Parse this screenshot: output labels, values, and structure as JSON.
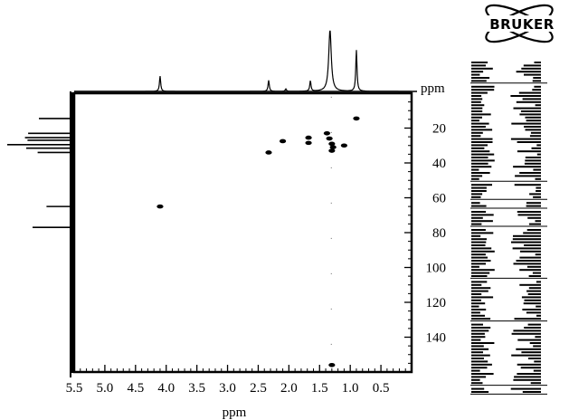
{
  "logo": {
    "text": "BRUKER"
  },
  "chart_data": {
    "type": "scatter",
    "subtype": "2D NMR correlation spectrum (HSQC-style) with 1D projections",
    "title": "",
    "xlabel": "ppm",
    "ylabel": "ppm",
    "x_axis": {
      "reversed": true,
      "range": [
        5.5,
        0.0
      ],
      "ticks": [
        5.5,
        5.0,
        4.5,
        4.0,
        3.5,
        3.0,
        2.5,
        2.0,
        1.5,
        1.0,
        0.5
      ],
      "tick_labels": [
        "5.5",
        "5.0",
        "4.5",
        "4.0",
        "3.5",
        "3.0",
        "2.5",
        "2.0",
        "1.5",
        "1.0",
        "0.5"
      ]
    },
    "y_axis": {
      "position": "right",
      "reversed": true,
      "range": [
        0,
        160
      ],
      "ticks": [
        20,
        40,
        60,
        80,
        100,
        120,
        140
      ],
      "tick_labels": [
        "20",
        "40",
        "60",
        "80",
        "100",
        "120",
        "140"
      ]
    },
    "grid": false,
    "legend": "none",
    "cross_peaks": [
      {
        "x": 4.1,
        "y": 65.0
      },
      {
        "x": 2.33,
        "y": 34.0
      },
      {
        "x": 2.1,
        "y": 27.5
      },
      {
        "x": 1.68,
        "y": 25.5
      },
      {
        "x": 1.68,
        "y": 28.5
      },
      {
        "x": 1.38,
        "y": 23.0
      },
      {
        "x": 1.34,
        "y": 26.0
      },
      {
        "x": 1.3,
        "y": 29.0
      },
      {
        "x": 1.28,
        "y": 31.0
      },
      {
        "x": 1.3,
        "y": 33.0
      },
      {
        "x": 1.1,
        "y": 30.0
      },
      {
        "x": 0.9,
        "y": 14.5
      },
      {
        "x": 1.3,
        "y": 156.0
      }
    ],
    "top_projection_1H": [
      {
        "ppm": 4.1,
        "intensity": 0.25
      },
      {
        "ppm": 2.33,
        "intensity": 0.18
      },
      {
        "ppm": 2.05,
        "intensity": 0.04
      },
      {
        "ppm": 1.65,
        "intensity": 0.17
      },
      {
        "ppm": 1.33,
        "intensity": 1.0
      },
      {
        "ppm": 0.9,
        "intensity": 0.67
      }
    ],
    "left_projection_13C": [
      {
        "ppm": 14.5,
        "intensity": 0.5
      },
      {
        "ppm": 23.0,
        "intensity": 0.67
      },
      {
        "ppm": 25.5,
        "intensity": 0.72
      },
      {
        "ppm": 27.0,
        "intensity": 0.68
      },
      {
        "ppm": 29.5,
        "intensity": 1.0
      },
      {
        "ppm": 31.5,
        "intensity": 0.7
      },
      {
        "ppm": 34.0,
        "intensity": 0.52
      },
      {
        "ppm": 65.0,
        "intensity": 0.38
      },
      {
        "ppm": 77.0,
        "intensity": 0.6
      }
    ]
  }
}
